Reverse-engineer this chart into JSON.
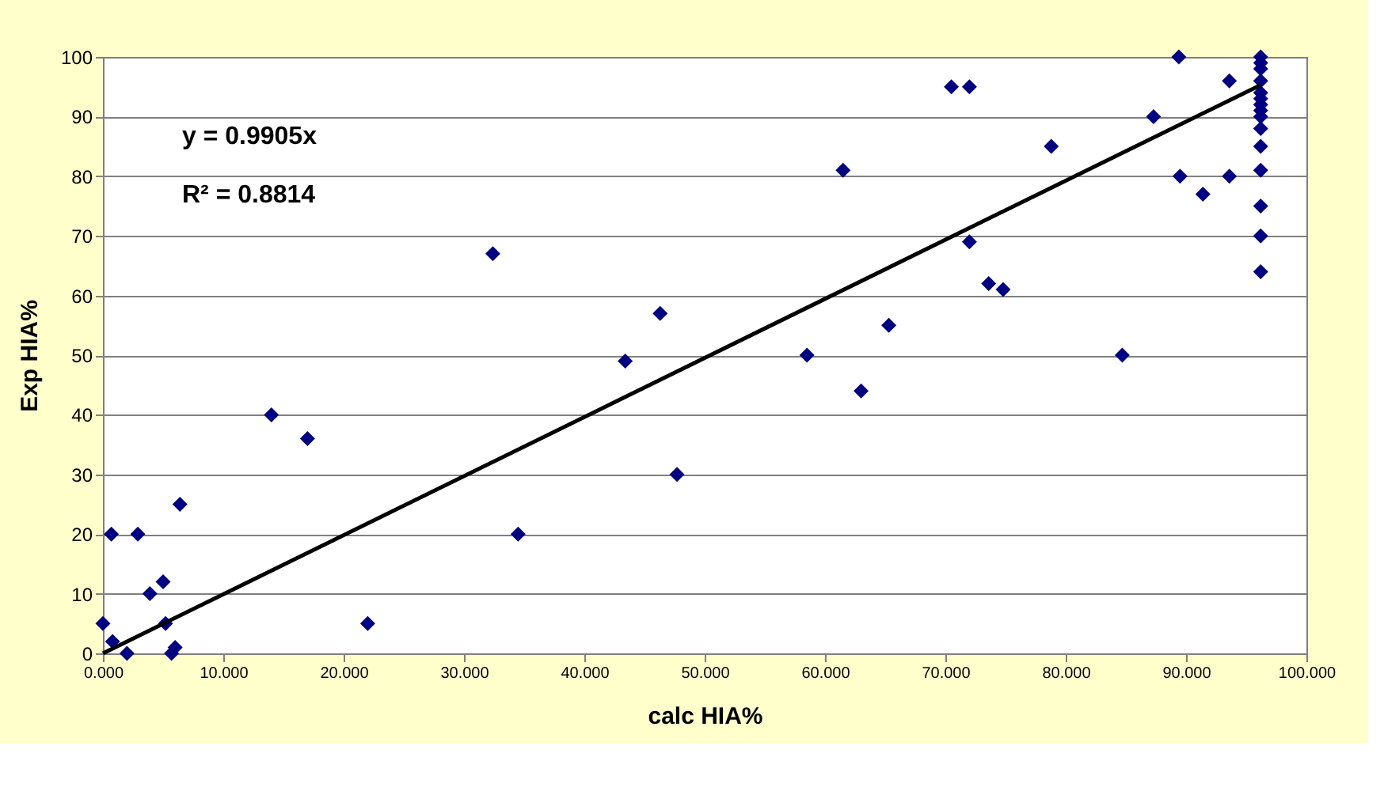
{
  "chart_data": {
    "type": "scatter",
    "xlabel": "calc HIA%",
    "ylabel": "Exp HIA%",
    "xlim": [
      0,
      100
    ],
    "ylim": [
      0,
      100
    ],
    "xticks": [
      {
        "value": 0,
        "label": "0.000"
      },
      {
        "value": 10,
        "label": "10.000"
      },
      {
        "value": 20,
        "label": "20.000"
      },
      {
        "value": 30,
        "label": "30.000"
      },
      {
        "value": 40,
        "label": "40.000"
      },
      {
        "value": 50,
        "label": "50.000"
      },
      {
        "value": 60,
        "label": "60.000"
      },
      {
        "value": 70,
        "label": "70.000"
      },
      {
        "value": 80,
        "label": "80.000"
      },
      {
        "value": 90,
        "label": "90.000"
      },
      {
        "value": 100,
        "label": "100.000"
      }
    ],
    "yticks": [
      0,
      10,
      20,
      30,
      40,
      50,
      60,
      70,
      80,
      90,
      100
    ],
    "grid": "y",
    "marker": "diamond",
    "annotations": [
      "y = 0.9905x",
      "R² = 0.8814"
    ],
    "series": [
      {
        "color": "#000080",
        "x": [
          0,
          0.7,
          0.8,
          2,
          2.9,
          3.9,
          5,
          5.2,
          5.7,
          6,
          6.4,
          14,
          17,
          22,
          32.4,
          34.5,
          43.4,
          46.3,
          47.7,
          58.5,
          61.5,
          63,
          65.3,
          70.5,
          72,
          72,
          73.6,
          74.8,
          78.8,
          84.7,
          87.3,
          89.4,
          89.5,
          91.4,
          93.6,
          93.6,
          96.2,
          96.2,
          96.2,
          96.2,
          96.2,
          96.2,
          96.2,
          96.2,
          96.2,
          96.2,
          96.2,
          96.2,
          96.2,
          96.2,
          96.2
        ],
        "values": [
          5,
          20,
          2,
          0,
          20,
          10,
          12,
          5,
          0,
          1,
          25,
          40,
          36,
          5,
          67,
          20,
          49,
          57,
          30,
          50,
          81,
          44,
          55,
          95,
          95,
          69,
          62,
          61,
          85,
          50,
          90,
          100,
          80,
          77,
          96,
          80,
          100,
          99,
          98,
          96,
          94,
          93,
          92,
          91,
          90,
          88,
          85,
          81,
          75,
          70,
          64
        ]
      },
      {
        "type": "line",
        "color": "#000000",
        "marker": "none",
        "line_style": "solid",
        "x": [
          0,
          96.2
        ],
        "values": [
          0,
          95.3
        ]
      }
    ]
  }
}
